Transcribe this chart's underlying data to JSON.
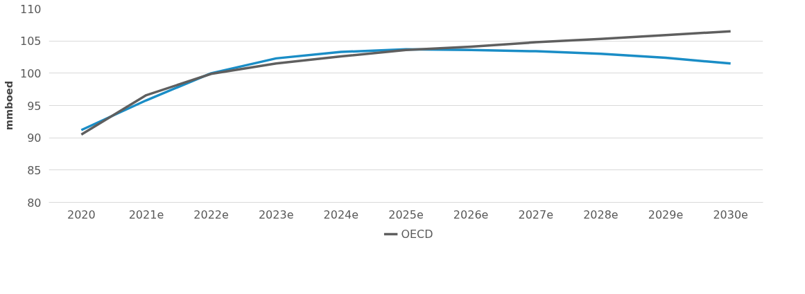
{
  "chart_data": {
    "type": "line",
    "ylabel": "mmboed",
    "categories": [
      "2020",
      "2021e",
      "2022e",
      "2023e",
      "2024e",
      "2025e",
      "2026e",
      "2027e",
      "2028e",
      "2029e",
      "2030e"
    ],
    "series": [
      {
        "color": "#1a8dc6",
        "values": [
          91.2,
          95.8,
          100.0,
          102.3,
          103.3,
          103.7,
          103.6,
          103.4,
          103.0,
          102.4,
          101.5
        ]
      },
      {
        "name": "OECD",
        "color": "#5f5f5f",
        "values": [
          90.5,
          96.6,
          99.9,
          101.5,
          102.6,
          103.6,
          104.1,
          104.8,
          105.3,
          105.9,
          106.5
        ]
      }
    ],
    "ylim": [
      80,
      110
    ],
    "yticks": [
      80,
      85,
      90,
      95,
      100,
      105,
      110
    ],
    "grid": "y",
    "legend": "bottom",
    "marker": "none",
    "line_style": "solid"
  }
}
